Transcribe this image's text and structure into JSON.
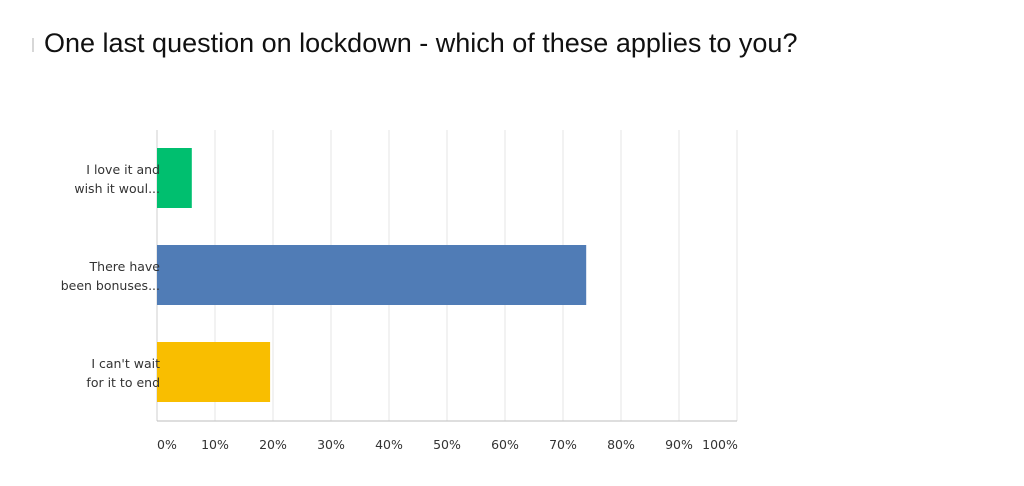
{
  "chart_data": {
    "type": "bar",
    "orientation": "horizontal",
    "title": "One last question on lockdown - which of these applies to you?",
    "categories": [
      [
        "I love it and",
        "wish it woul..."
      ],
      [
        "There have",
        "been bonuses..."
      ],
      [
        "I can't wait",
        "for it to end"
      ]
    ],
    "values": [
      6,
      74,
      19.5
    ],
    "colors": [
      "#00bf6f",
      "#507cb6",
      "#f9be00"
    ],
    "xlim": [
      0,
      100
    ],
    "ticks": [
      "0%",
      "10%",
      "20%",
      "30%",
      "40%",
      "50%",
      "60%",
      "70%",
      "80%",
      "90%",
      "100%"
    ],
    "grid": true
  }
}
